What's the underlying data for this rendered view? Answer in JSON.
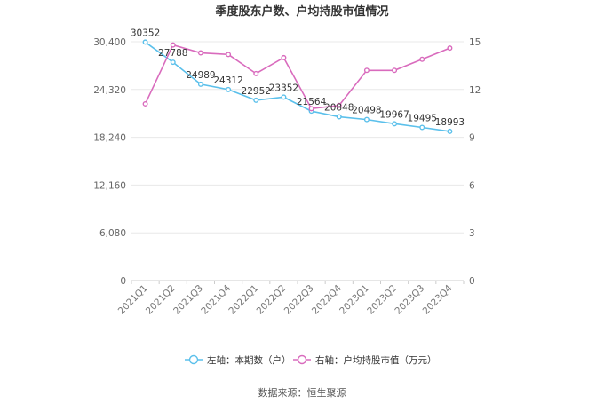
{
  "chart_data": {
    "type": "line",
    "title": "季度股东户数、户均持股市值情况",
    "categories": [
      "2021Q1",
      "2021Q2",
      "2021Q3",
      "2021Q4",
      "2022Q1",
      "2022Q2",
      "2022Q3",
      "2022Q4",
      "2023Q1",
      "2023Q2",
      "2023Q3",
      "2023Q4"
    ],
    "series": [
      {
        "name": "左轴：本期数（户）",
        "axis": "left",
        "color": "#5bc0eb",
        "values": [
          30352,
          27788,
          24989,
          24312,
          22952,
          23352,
          21564,
          20848,
          20498,
          19967,
          19495,
          18993
        ],
        "data_labels": [
          "30352",
          "27788",
          "24989",
          "24312",
          "22952",
          "23352",
          "21564",
          "20848",
          "20498",
          "19967",
          "19495",
          "18993"
        ]
      },
      {
        "name": "右轴：户均持股市值（万元）",
        "axis": "right",
        "color": "#d96bbd",
        "values": [
          11.1,
          14.8,
          14.3,
          14.2,
          13.0,
          14.0,
          10.8,
          11.0,
          13.2,
          13.2,
          13.9,
          14.6
        ]
      }
    ],
    "y_left": {
      "min": 0,
      "max": 30400,
      "ticks": [
        0,
        6080,
        12160,
        18240,
        24320,
        30400
      ],
      "tick_labels": [
        "0",
        "6,080",
        "12,160",
        "18,240",
        "24,320",
        "30,400"
      ]
    },
    "y_right": {
      "min": 0,
      "max": 15,
      "ticks": [
        0,
        3,
        6,
        9,
        12,
        15
      ],
      "tick_labels": [
        "0",
        "3",
        "6",
        "9",
        "12",
        "15"
      ]
    },
    "grid": true,
    "legend_position": "bottom",
    "source": "数据来源：恒生聚源"
  }
}
